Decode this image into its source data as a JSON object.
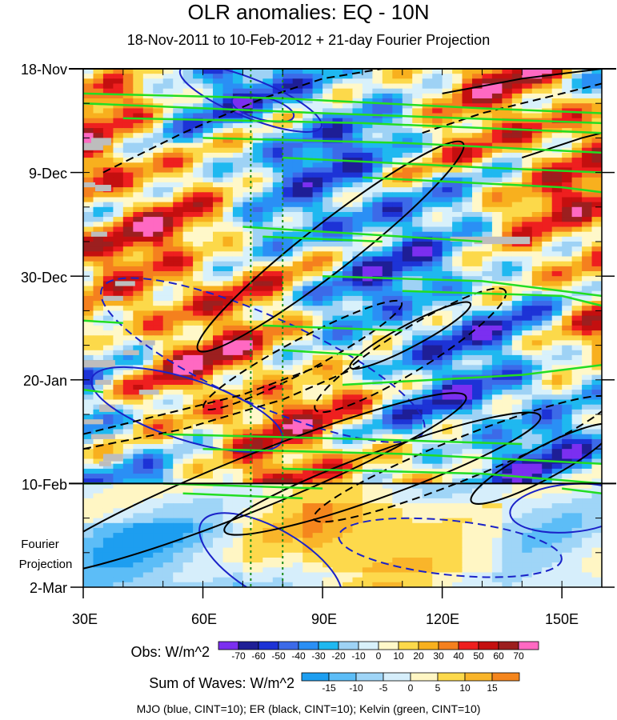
{
  "chart_data": {
    "type": "heatmap",
    "title": "OLR anomalies: EQ - 10N",
    "subtitle": "18-Nov-2011 to 10-Feb-2012 + 21-day Fourier Projection",
    "x_ticks": [
      "30E",
      "60E",
      "90E",
      "120E",
      "150E"
    ],
    "x_tick_values": [
      30,
      60,
      90,
      120,
      150
    ],
    "x_range": [
      30,
      160
    ],
    "y_ticks": [
      "18-Nov",
      "9-Dec",
      "30-Dec",
      "20-Jan",
      "10-Feb",
      "2-Mar"
    ],
    "y_tick_days": [
      0,
      21,
      42,
      63,
      84,
      105
    ],
    "y_range_days": [
      0,
      105
    ],
    "projection_label": [
      "Fourier",
      "Projection"
    ],
    "projection_start_day": 84,
    "reference_longitudes": [
      72,
      80
    ],
    "obs_colorbar": {
      "title": "Obs: W/m^2",
      "ticks": [
        "-70",
        "-60",
        "-50",
        "-40",
        "-30",
        "-20",
        "-10",
        "0",
        "10",
        "20",
        "30",
        "40",
        "50",
        "60",
        "70"
      ],
      "colors": [
        "#7b2ff0",
        "#1e1e96",
        "#1d33d6",
        "#3c6ae8",
        "#2a8ff5",
        "#1fb8f0",
        "#9ed2f5",
        "#d8f1fb",
        "#fff8c9",
        "#fcd94a",
        "#f8b01e",
        "#f5801e",
        "#ee1f1f",
        "#c40f0f",
        "#9c1f1f",
        "#ff69c2"
      ]
    },
    "waves_colorbar": {
      "title": "Sum of Waves: W/m^2",
      "ticks": [
        "-15",
        "-10",
        "-5",
        "0",
        "5",
        "10",
        "15"
      ],
      "colors": [
        "#1d9ef0",
        "#5cbdf7",
        "#9fd5f7",
        "#d6eefb",
        "#fff6c4",
        "#fdd94c",
        "#f9b52a",
        "#f5861d"
      ]
    },
    "series": [
      {
        "name": "MJO",
        "color": "blue",
        "cint": 10
      },
      {
        "name": "ER",
        "color": "black",
        "cint": 10
      },
      {
        "name": "Kelvin",
        "color": "green",
        "cint": 10
      }
    ],
    "footer": "MJO (blue, CINT=10); ER (black, CINT=10); Kelvin (green, CINT=10)"
  },
  "colors": {
    "mjo": "#1a22c8",
    "er": "#000000",
    "kelvin": "#22dd22",
    "missing": "#bdbdbd",
    "refline": "#1a8c1a"
  }
}
